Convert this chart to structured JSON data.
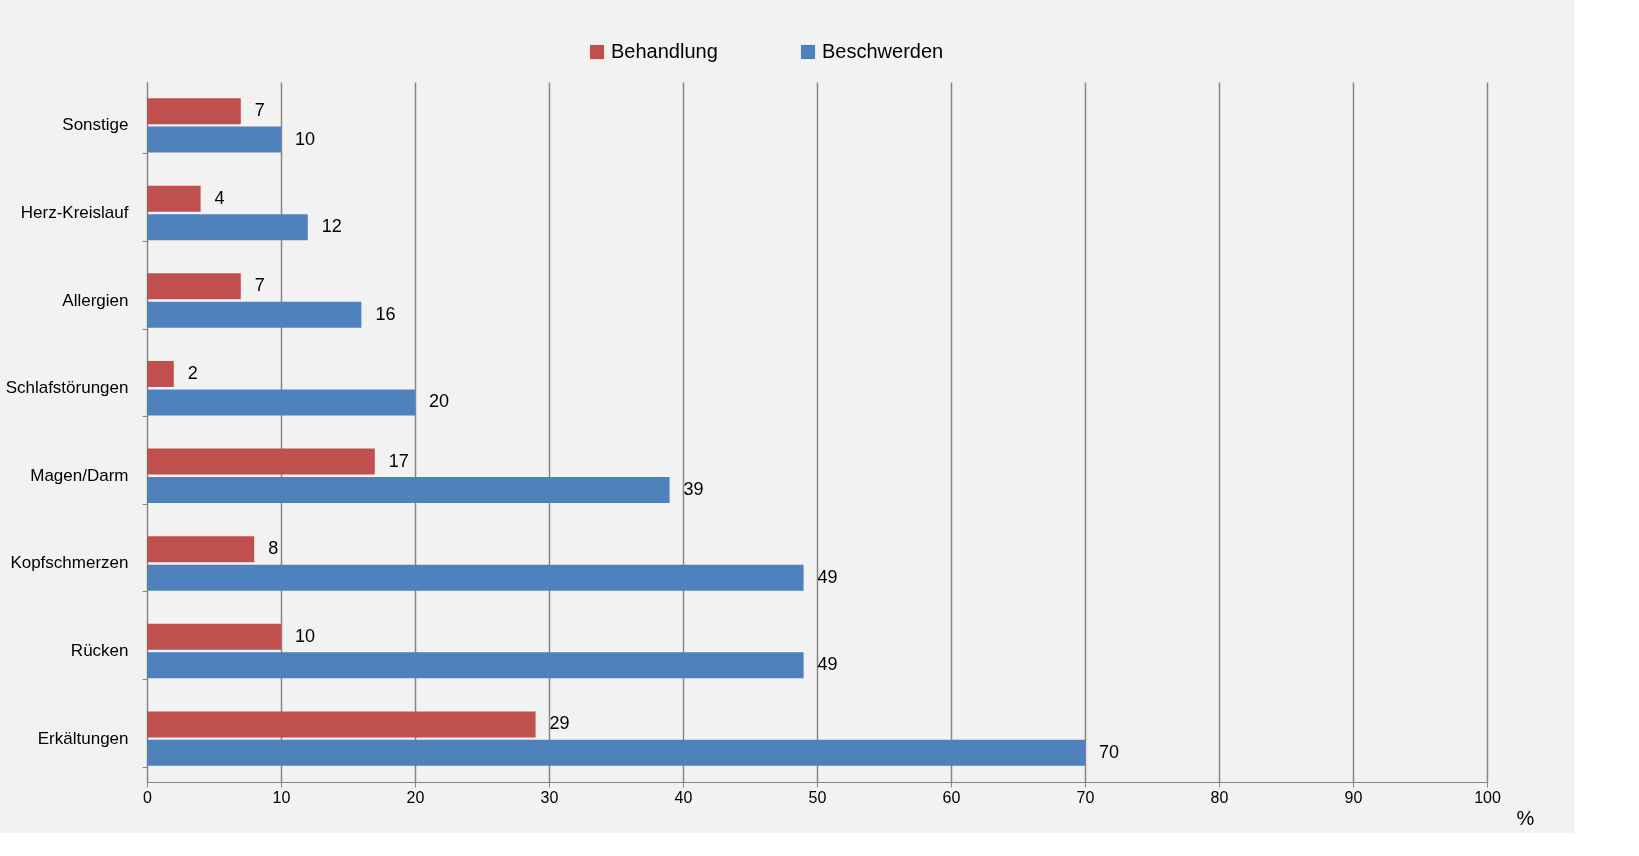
{
  "chart_data": {
    "type": "bar",
    "orientation": "horizontal",
    "xlabel": "%",
    "categories": [
      "Sonstige",
      "Herz-Kreislauf",
      "Allergien",
      "Schlafstörungen",
      "Magen/Darm",
      "Kopfschmerzen",
      "Rücken",
      "Erkältungen"
    ],
    "series": [
      {
        "name": "Behandlung",
        "color": "#c0504d",
        "values": [
          7,
          4,
          7,
          2,
          17,
          8,
          10,
          29
        ]
      },
      {
        "name": "Beschwerden",
        "color": "#4f81bd",
        "values": [
          10,
          12,
          16,
          20,
          39,
          49,
          49,
          70
        ]
      }
    ],
    "xlim": [
      0,
      100
    ],
    "xticks": [
      0,
      10,
      20,
      30,
      40,
      50,
      60,
      70,
      80,
      90,
      100
    ],
    "grid": "x",
    "legend": "top",
    "data_labels": true
  }
}
